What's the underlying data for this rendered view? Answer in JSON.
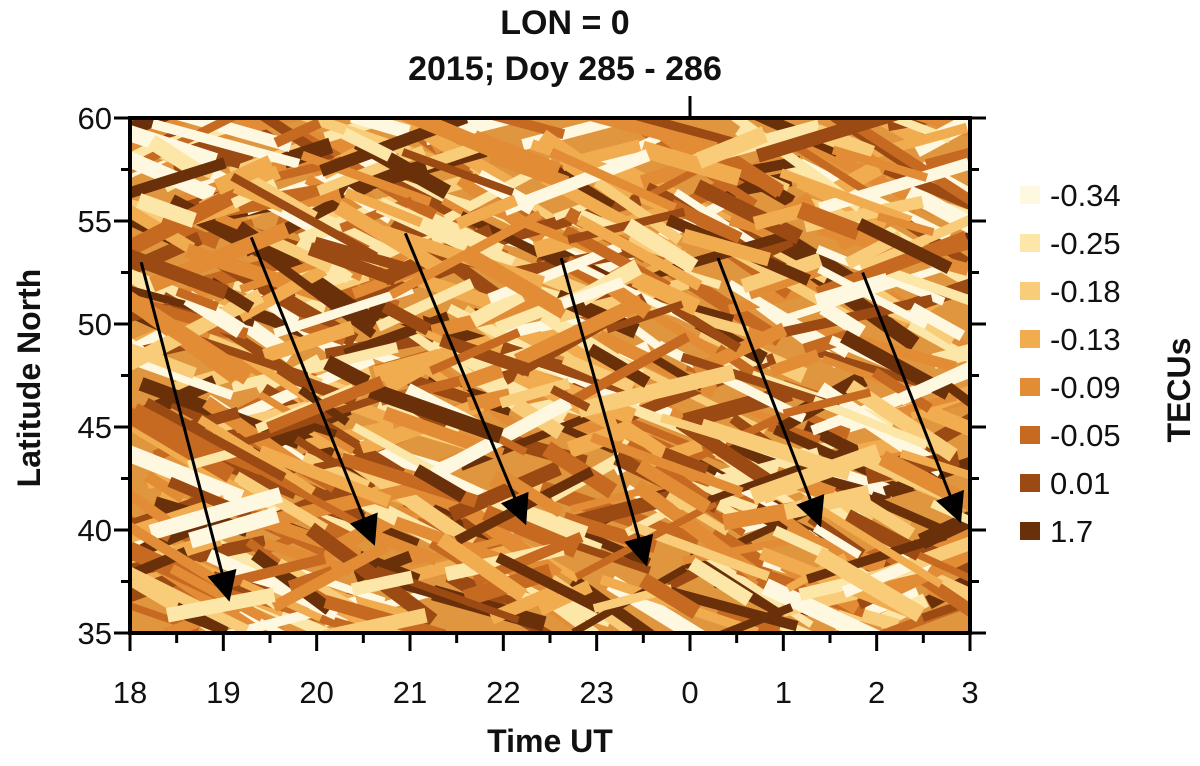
{
  "chart_data": {
    "type": "heatmap",
    "title": "LON = 0",
    "subtitle": "2015; Doy 285 - 286",
    "xlabel": "Time UT",
    "ylabel": "Latitude North",
    "x_ticks": [
      "18",
      "19",
      "20",
      "21",
      "22",
      "23",
      "0",
      "1",
      "2",
      "3"
    ],
    "y_ticks": [
      "35",
      "40",
      "45",
      "50",
      "55",
      "60"
    ],
    "xlim": [
      18,
      27
    ],
    "ylim": [
      35,
      60
    ],
    "colorbar": {
      "label": "TECUs",
      "levels": [
        {
          "label": "-0.34",
          "color": "#FFF8E0"
        },
        {
          "label": "-0.25",
          "color": "#FCE6A8"
        },
        {
          "label": "-0.18",
          "color": "#F8CC78"
        },
        {
          "label": "-0.13",
          "color": "#F2AC50"
        },
        {
          "label": "-0.09",
          "color": "#E28C36"
        },
        {
          "label": "-0.05",
          "color": "#C66A22"
        },
        {
          "label": "0.01",
          "color": "#9A4A12"
        },
        {
          "label": "1.7",
          "color": "#6A300A"
        }
      ]
    },
    "arrows": [
      {
        "from": [
          18.12,
          53.0
        ],
        "to": [
          19.05,
          36.8
        ]
      },
      {
        "from": [
          19.3,
          54.2
        ],
        "to": [
          20.6,
          39.5
        ]
      },
      {
        "from": [
          20.95,
          54.4
        ],
        "to": [
          22.22,
          40.5
        ]
      },
      {
        "from": [
          22.62,
          53.2
        ],
        "to": [
          23.52,
          38.5
        ]
      },
      {
        "from": [
          24.3,
          53.2
        ],
        "to": [
          25.38,
          40.4
        ]
      },
      {
        "from": [
          25.85,
          52.5
        ],
        "to": [
          26.88,
          40.6
        ]
      }
    ],
    "grid": false,
    "legend_position": "right"
  }
}
